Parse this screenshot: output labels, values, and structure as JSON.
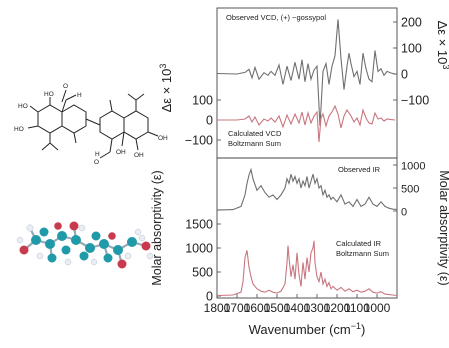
{
  "chart_data": {
    "type": "line",
    "x_axis": {
      "label": "Wavenumber (cm",
      "label_sup": "−1",
      "label_close": ")",
      "range": [
        1800,
        900
      ],
      "ticks": [
        1800,
        1700,
        1600,
        1500,
        1400,
        1300,
        1200,
        1100,
        1000
      ],
      "tick_labels": [
        "1800",
        "1700",
        "1600",
        "1500",
        "1400",
        "1300",
        "1200",
        "1100",
        "1000"
      ]
    },
    "vcd_axes": {
      "left_label": "Δε × 10",
      "left_label_sup": "3",
      "right_label": "Δε × 10",
      "right_label_sup": "3",
      "left_ticks": [
        {
          "v": 100,
          "text": "100"
        },
        {
          "v": 0,
          "text": "0"
        },
        {
          "v": -100,
          "text": "−100"
        }
      ],
      "right_ticks": [
        {
          "v": 200,
          "text": "200"
        },
        {
          "v": 100,
          "text": "100"
        },
        {
          "v": 0,
          "text": "0"
        },
        {
          "v": -100,
          "text": "−100"
        }
      ]
    },
    "ir_axes": {
      "left_label": "Molar absorptivity (ε)",
      "right_label": "Molar absorptivity (ε)",
      "left_ticks": [
        {
          "v": 1500,
          "text": "1500"
        },
        {
          "v": 1000,
          "text": "1000"
        },
        {
          "v": 500,
          "text": "500"
        },
        {
          "v": 0,
          "text": "0"
        }
      ],
      "right_ticks": [
        {
          "v": 1000,
          "text": "1000"
        },
        {
          "v": 500,
          "text": "500"
        },
        {
          "v": 0,
          "text": "0"
        }
      ]
    },
    "series": [
      {
        "name": "Observed VCD, (+)−gossypol",
        "panel": "vcd_observed",
        "color": "#6f6f6f",
        "x": [
          1800,
          1700,
          1660,
          1640,
          1625,
          1610,
          1590,
          1565,
          1545,
          1530,
          1510,
          1490,
          1470,
          1450,
          1430,
          1410,
          1390,
          1375,
          1360,
          1345,
          1330,
          1315,
          1300,
          1285,
          1270,
          1255,
          1240,
          1225,
          1210,
          1195,
          1180,
          1165,
          1150,
          1140,
          1130,
          1115,
          1100,
          1085,
          1070,
          1055,
          1040,
          1025,
          1010,
          995,
          980,
          965,
          950,
          930,
          910
        ],
        "y": [
          2,
          0,
          6,
          18,
          -15,
          25,
          -20,
          5,
          -5,
          10,
          -5,
          35,
          -40,
          30,
          -25,
          45,
          -20,
          55,
          -30,
          40,
          -20,
          15,
          30,
          -200,
          10,
          40,
          -40,
          30,
          70,
          210,
          60,
          -60,
          30,
          80,
          40,
          -10,
          10,
          -40,
          80,
          20,
          -20,
          -30,
          90,
          10,
          20,
          -5,
          10,
          4,
          0
        ]
      },
      {
        "name": "Calculated VCD Boltzmann Sum",
        "panel": "vcd_calculated",
        "color": "#c9767e",
        "x": [
          1800,
          1700,
          1660,
          1640,
          1625,
          1610,
          1590,
          1565,
          1545,
          1530,
          1510,
          1490,
          1470,
          1450,
          1430,
          1410,
          1390,
          1375,
          1360,
          1345,
          1330,
          1315,
          1300,
          1290,
          1280,
          1270,
          1255,
          1240,
          1225,
          1210,
          1195,
          1180,
          1165,
          1150,
          1130,
          1115,
          1100,
          1085,
          1070,
          1055,
          1040,
          1025,
          1010,
          995,
          980,
          965,
          950,
          930,
          910
        ],
        "y": [
          0,
          0,
          5,
          20,
          -10,
          15,
          -25,
          5,
          -5,
          10,
          -10,
          20,
          -35,
          25,
          -20,
          30,
          -15,
          40,
          -25,
          35,
          -15,
          20,
          40,
          -110,
          10,
          30,
          -30,
          20,
          40,
          70,
          30,
          -40,
          20,
          50,
          20,
          -10,
          10,
          -25,
          50,
          10,
          -15,
          -20,
          35,
          5,
          10,
          -5,
          5,
          2,
          0
        ]
      },
      {
        "name": "Observed IR",
        "panel": "ir_observed",
        "color": "#6f6f6f",
        "x": [
          1800,
          1720,
          1680,
          1660,
          1650,
          1640,
          1630,
          1620,
          1600,
          1580,
          1560,
          1540,
          1520,
          1500,
          1480,
          1460,
          1450,
          1440,
          1430,
          1420,
          1410,
          1400,
          1390,
          1380,
          1370,
          1360,
          1350,
          1340,
          1330,
          1320,
          1310,
          1300,
          1290,
          1280,
          1270,
          1260,
          1250,
          1240,
          1230,
          1220,
          1200,
          1180,
          1160,
          1140,
          1120,
          1100,
          1080,
          1060,
          1040,
          1020,
          1000,
          980,
          960,
          940,
          920,
          900
        ],
        "y": [
          20,
          30,
          100,
          350,
          600,
          780,
          900,
          700,
          450,
          550,
          400,
          300,
          350,
          250,
          350,
          500,
          700,
          600,
          800,
          650,
          750,
          600,
          700,
          500,
          650,
          550,
          750,
          500,
          650,
          800,
          600,
          700,
          500,
          550,
          350,
          450,
          300,
          350,
          250,
          300,
          200,
          350,
          150,
          200,
          100,
          250,
          100,
          150,
          300,
          150,
          100,
          200,
          100,
          60,
          40,
          30
        ]
      },
      {
        "name": "Calculated IR Boltzmann Sum",
        "panel": "ir_calculated",
        "color": "#c9767e",
        "x": [
          1800,
          1720,
          1680,
          1670,
          1660,
          1650,
          1640,
          1630,
          1620,
          1600,
          1580,
          1560,
          1540,
          1520,
          1500,
          1480,
          1460,
          1450,
          1445,
          1440,
          1430,
          1420,
          1410,
          1400,
          1390,
          1380,
          1370,
          1360,
          1350,
          1340,
          1330,
          1320,
          1315,
          1310,
          1300,
          1290,
          1280,
          1270,
          1260,
          1250,
          1240,
          1230,
          1220,
          1200,
          1180,
          1160,
          1140,
          1120,
          1100,
          1080,
          1060,
          1040,
          1020,
          1000,
          980,
          960,
          940,
          920,
          900
        ],
        "y": [
          10,
          20,
          80,
          300,
          800,
          950,
          600,
          400,
          250,
          150,
          100,
          80,
          120,
          80,
          60,
          100,
          250,
          700,
          1050,
          800,
          400,
          650,
          350,
          900,
          450,
          200,
          700,
          350,
          800,
          500,
          900,
          1000,
          1150,
          700,
          400,
          300,
          500,
          250,
          350,
          200,
          280,
          150,
          200,
          120,
          180,
          100,
          150,
          90,
          120,
          80,
          100,
          150,
          80,
          60,
          90,
          40,
          30,
          20,
          10
        ]
      }
    ]
  },
  "labels": {
    "observed_vcd": "Observed VCD, (+) −gossypol",
    "calculated_vcd_line1": "Calculated VCD",
    "calculated_vcd_line2": "Boltzmann Sum",
    "observed_ir": "Observed IR",
    "calculated_ir_line1": "Calculated IR",
    "calculated_ir_line2": "Boltzmann Sum"
  },
  "structure": {
    "atom_labels": [
      "HO",
      "HO",
      "HO",
      "OH",
      "OH",
      "OH",
      "O",
      "O",
      "H",
      "H"
    ]
  }
}
